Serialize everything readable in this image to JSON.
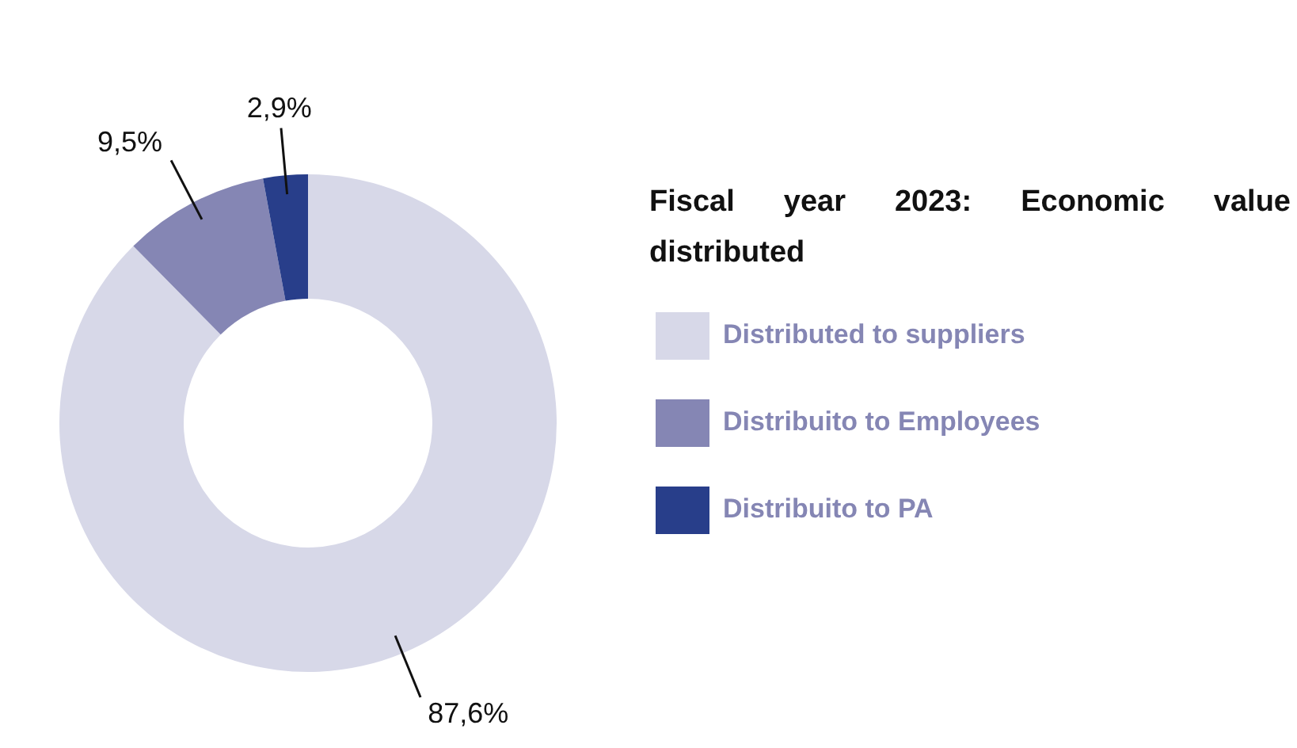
{
  "chart_data": {
    "type": "donut",
    "title": "Fiscal year 2023: Economic value distributed",
    "categories": [
      "Distributed to suppliers",
      "Distribuito to Employees",
      "Distribuito to PA"
    ],
    "values": [
      87.6,
      9.5,
      2.9
    ],
    "colors": [
      "#d7d8e8",
      "#8586b4",
      "#283e8a"
    ],
    "value_labels": [
      "87,6%",
      "9,5%",
      "2,9%"
    ],
    "legend": "right"
  }
}
